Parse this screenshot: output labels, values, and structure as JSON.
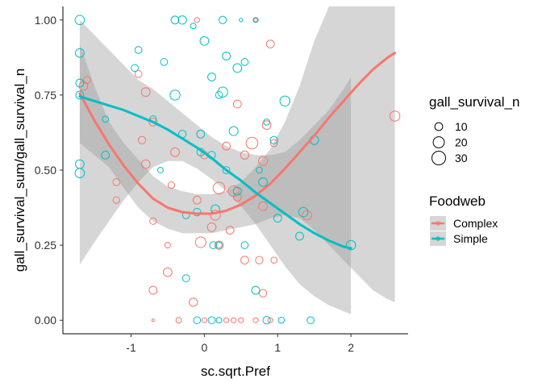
{
  "colors": {
    "complex": "#F8766D",
    "simple": "#00BFC4",
    "ribbon": "#999999",
    "axis": "#000000"
  },
  "chart_data": {
    "type": "scatter",
    "xlabel": "sc.sqrt.Pref",
    "ylabel": "gall_survival_sum/gall_survival_n",
    "xlim": [
      -1.93,
      2.78
    ],
    "ylim": [
      -0.045,
      1.045
    ],
    "x_ticks": [
      "-1",
      "0",
      "1",
      "2"
    ],
    "y_ticks": [
      "0.00",
      "0.25",
      "0.50",
      "0.75",
      "1.00"
    ],
    "grid": false,
    "legends": {
      "size": {
        "title": "gall_survival_n",
        "entries": [
          {
            "label": "10",
            "value": 10
          },
          {
            "label": "20",
            "value": 20
          },
          {
            "label": "30",
            "value": 30
          }
        ]
      },
      "color": {
        "title": "Foodweb",
        "entries": [
          {
            "label": "Complex",
            "color": "#F8766D"
          },
          {
            "label": "Simple",
            "color": "#00BFC4"
          }
        ]
      },
      "placement": "right"
    },
    "series": [
      {
        "name": "Complex",
        "points": [
          [
            -0.1,
            1.0,
            4
          ],
          [
            -0.7,
            0.0,
            1
          ],
          [
            0.7,
            1.0,
            2
          ],
          [
            0.9,
            0.92,
            10
          ],
          [
            -0.9,
            0.82,
            8
          ],
          [
            -0.8,
            0.76,
            12
          ],
          [
            -0.7,
            0.66,
            10
          ],
          [
            -0.4,
            0.56,
            12
          ],
          [
            0.0,
            0.55,
            9
          ],
          [
            0.3,
            0.58,
            10
          ],
          [
            0.45,
            0.72,
            10
          ],
          [
            0.55,
            0.55,
            11
          ],
          [
            0.65,
            0.59,
            22
          ],
          [
            0.8,
            0.53,
            13
          ],
          [
            0.85,
            0.65,
            12
          ],
          [
            0.95,
            0.59,
            8
          ],
          [
            -0.8,
            0.52,
            12
          ],
          [
            -1.2,
            0.46,
            8
          ],
          [
            -1.2,
            0.4,
            7
          ],
          [
            -0.1,
            0.4,
            10
          ],
          [
            0.2,
            0.44,
            22
          ],
          [
            0.4,
            0.43,
            18
          ],
          [
            0.45,
            0.41,
            10
          ],
          [
            0.15,
            0.35,
            16
          ],
          [
            0.35,
            0.3,
            10
          ],
          [
            0.2,
            0.25,
            11
          ],
          [
            0.1,
            0.31,
            12
          ],
          [
            -0.7,
            0.33,
            7
          ],
          [
            0.8,
            0.38,
            12
          ],
          [
            1.4,
            0.35,
            14
          ],
          [
            -0.05,
            0.26,
            18
          ],
          [
            -0.5,
            0.25,
            5
          ],
          [
            0.55,
            0.2,
            10
          ],
          [
            0.75,
            0.2,
            9
          ],
          [
            -0.5,
            0.16,
            12
          ],
          [
            -0.7,
            0.1,
            10
          ],
          [
            -0.15,
            0.06,
            11
          ],
          [
            0.8,
            0.09,
            9
          ],
          [
            -0.35,
            0.0,
            5
          ],
          [
            0.0,
            0.0,
            4
          ],
          [
            0.3,
            0.0,
            4
          ],
          [
            0.4,
            0.0,
            4
          ],
          [
            0.5,
            0.0,
            4
          ],
          [
            0.7,
            0.0,
            4
          ],
          [
            0.9,
            0.0,
            4
          ],
          [
            2.6,
            0.68,
            16
          ],
          [
            0.95,
            0.2,
            6
          ],
          [
            -0.45,
            0.45,
            7
          ],
          [
            -0.85,
            0.6,
            9
          ],
          [
            -1.6,
            0.8,
            8
          ],
          [
            -1.65,
            0.78,
            12
          ]
        ]
      },
      {
        "name": "Simple",
        "points": [
          [
            -1.7,
            1.0,
            14
          ],
          [
            -1.7,
            0.89,
            12
          ],
          [
            -1.7,
            0.79,
            10
          ],
          [
            -1.7,
            0.75,
            10
          ],
          [
            -1.7,
            0.52,
            12
          ],
          [
            -1.7,
            0.49,
            14
          ],
          [
            -0.95,
            0.84,
            8
          ],
          [
            -0.9,
            0.9,
            8
          ],
          [
            -0.55,
            0.86,
            8
          ],
          [
            -0.4,
            1.0,
            10
          ],
          [
            -0.3,
            1.0,
            11
          ],
          [
            -0.15,
            0.98,
            5
          ],
          [
            0.0,
            0.93,
            12
          ],
          [
            0.25,
            1.0,
            9
          ],
          [
            0.5,
            1.0,
            2
          ],
          [
            0.7,
            1.0,
            4
          ],
          [
            0.3,
            0.88,
            10
          ],
          [
            0.55,
            0.86,
            8
          ],
          [
            0.1,
            0.81,
            10
          ],
          [
            0.25,
            0.76,
            16
          ],
          [
            0.2,
            0.75,
            8
          ],
          [
            0.45,
            0.84,
            12
          ],
          [
            -0.4,
            0.75,
            16
          ],
          [
            -1.35,
            0.67,
            6
          ],
          [
            -0.7,
            0.67,
            7
          ],
          [
            1.1,
            0.73,
            16
          ],
          [
            0.4,
            0.63,
            13
          ],
          [
            0.95,
            0.6,
            9
          ],
          [
            1.5,
            0.6,
            12
          ],
          [
            0.85,
            0.66,
            6
          ],
          [
            -0.05,
            0.62,
            10
          ],
          [
            -0.3,
            0.62,
            9
          ],
          [
            -0.05,
            0.56,
            9
          ],
          [
            -1.35,
            0.55,
            10
          ],
          [
            0.75,
            0.5,
            6
          ],
          [
            -0.6,
            0.5,
            5
          ],
          [
            0.1,
            0.55,
            9
          ],
          [
            0.3,
            0.5,
            8
          ],
          [
            0.8,
            0.46,
            12
          ],
          [
            -0.1,
            0.36,
            9
          ],
          [
            0.15,
            0.37,
            12
          ],
          [
            -0.25,
            0.35,
            8
          ],
          [
            0.45,
            0.43,
            10
          ],
          [
            1.35,
            0.36,
            14
          ],
          [
            1.0,
            0.34,
            10
          ],
          [
            1.3,
            0.28,
            10
          ],
          [
            0.12,
            0.25,
            8
          ],
          [
            0.55,
            0.25,
            8
          ],
          [
            0.2,
            0.25,
            6
          ],
          [
            2.0,
            0.25,
            14
          ],
          [
            -0.25,
            0.14,
            8
          ],
          [
            0.7,
            0.1,
            10
          ],
          [
            -0.1,
            0.0,
            8
          ],
          [
            0.1,
            0.0,
            8
          ],
          [
            0.2,
            0.0,
            5
          ],
          [
            0.85,
            0.0,
            9
          ],
          [
            1.05,
            0.0,
            6
          ],
          [
            1.45,
            0.0,
            8
          ]
        ]
      }
    ],
    "fits": {
      "Complex": {
        "x": [
          -1.7,
          -1.5,
          -1.3,
          -1.1,
          -0.9,
          -0.7,
          -0.5,
          -0.3,
          -0.1,
          0.1,
          0.3,
          0.5,
          0.7,
          0.9,
          1.1,
          1.3,
          1.5,
          1.7,
          1.9,
          2.1,
          2.3,
          2.5,
          2.6
        ],
        "y": [
          0.755,
          0.665,
          0.585,
          0.515,
          0.455,
          0.405,
          0.375,
          0.36,
          0.355,
          0.355,
          0.365,
          0.385,
          0.415,
          0.455,
          0.505,
          0.56,
          0.615,
          0.675,
          0.73,
          0.785,
          0.835,
          0.875,
          0.89
        ],
        "lower": [
          0.59,
          0.55,
          0.51,
          0.44,
          0.375,
          0.33,
          0.305,
          0.29,
          0.29,
          0.29,
          0.3,
          0.31,
          0.32,
          0.34,
          0.35,
          0.34,
          0.3,
          0.25,
          0.2,
          0.15,
          0.1,
          0.07,
          0.06
        ],
        "upper": [
          0.92,
          0.78,
          0.66,
          0.59,
          0.535,
          0.48,
          0.445,
          0.43,
          0.42,
          0.42,
          0.43,
          0.46,
          0.51,
          0.57,
          0.66,
          0.78,
          0.93,
          1.045,
          1.045,
          1.045,
          1.045,
          1.045,
          1.045
        ]
      },
      "Simple": {
        "x": [
          -1.7,
          -1.5,
          -1.3,
          -1.1,
          -0.9,
          -0.7,
          -0.5,
          -0.3,
          -0.1,
          0.1,
          0.3,
          0.5,
          0.7,
          0.9,
          1.1,
          1.3,
          1.5,
          1.7,
          1.9,
          2.0
        ],
        "y": [
          0.745,
          0.73,
          0.715,
          0.7,
          0.68,
          0.66,
          0.635,
          0.605,
          0.575,
          0.54,
          0.5,
          0.465,
          0.425,
          0.39,
          0.355,
          0.32,
          0.29,
          0.265,
          0.245,
          0.24
        ],
        "lower": [
          0.185,
          0.26,
          0.33,
          0.4,
          0.46,
          0.51,
          0.53,
          0.53,
          0.505,
          0.47,
          0.43,
          0.38,
          0.32,
          0.25,
          0.18,
          0.12,
          0.08,
          0.05,
          0.03,
          0.02
        ],
        "upper": [
          1.0,
          0.95,
          0.9,
          0.85,
          0.8,
          0.77,
          0.73,
          0.69,
          0.65,
          0.61,
          0.58,
          0.56,
          0.55,
          0.55,
          0.56,
          0.6,
          0.65,
          0.7,
          0.77,
          0.81
        ]
      }
    }
  }
}
